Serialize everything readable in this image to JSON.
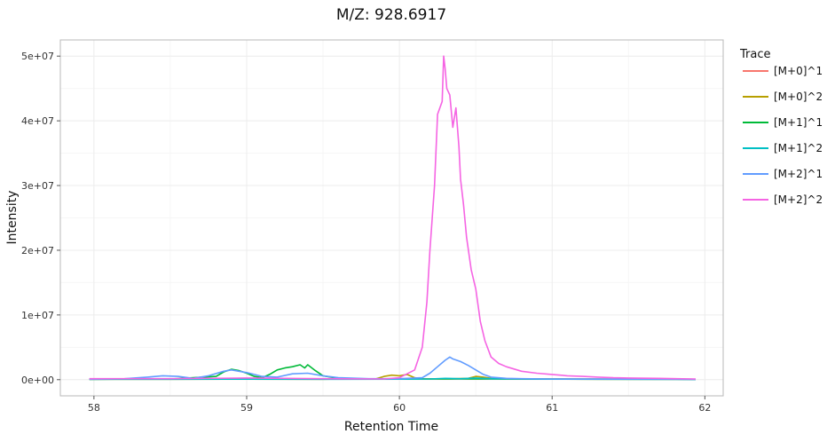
{
  "chart_data": {
    "type": "line",
    "title": "M/Z: 928.6917",
    "xlabel": "Retention Time",
    "ylabel": "Intensity",
    "xlim": [
      57.78,
      62.12
    ],
    "ylim": [
      -2500000,
      52500000
    ],
    "x_ticks": [
      58,
      59,
      60,
      61,
      62
    ],
    "x_tick_labels": [
      "58",
      "59",
      "60",
      "61",
      "62"
    ],
    "y_ticks": [
      0,
      10000000,
      20000000,
      30000000,
      40000000,
      50000000
    ],
    "y_tick_labels": [
      "0e+00",
      "1e+07",
      "2e+07",
      "3e+07",
      "4e+07",
      "5e+07"
    ],
    "grid": true,
    "legend": {
      "title": "Trace",
      "position": "right"
    },
    "series": [
      {
        "name": "[M+0]^1",
        "color": "#F8766D",
        "x": [
          57.97,
          58.3,
          58.6,
          58.9,
          59.2,
          59.5,
          59.8,
          60.0,
          60.3,
          60.6,
          60.9,
          61.2,
          61.5,
          61.8,
          61.94
        ],
        "y": [
          80000,
          120000,
          100000,
          200000,
          150000,
          120000,
          100000,
          150000,
          100000,
          120000,
          100000,
          90000,
          100000,
          80000,
          70000
        ]
      },
      {
        "name": "[M+0]^2",
        "color": "#B79F00",
        "x": [
          57.97,
          58.5,
          59.0,
          59.5,
          59.85,
          59.9,
          59.95,
          60.0,
          60.05,
          60.1,
          60.15,
          60.3,
          60.45,
          60.5,
          60.55,
          60.6,
          60.8,
          61.3,
          61.94
        ],
        "y": [
          50000,
          60000,
          80000,
          60000,
          150000,
          500000,
          700000,
          600000,
          800000,
          300000,
          100000,
          100000,
          200000,
          500000,
          400000,
          200000,
          100000,
          60000,
          50000
        ]
      },
      {
        "name": "[M+1]^1",
        "color": "#00BA38",
        "x": [
          57.97,
          58.5,
          58.8,
          58.85,
          58.9,
          58.95,
          59.0,
          59.05,
          59.1,
          59.15,
          59.2,
          59.25,
          59.3,
          59.35,
          59.38,
          59.4,
          59.45,
          59.5,
          59.6,
          60.0,
          60.5,
          61.0,
          61.94
        ],
        "y": [
          80000,
          100000,
          500000,
          1200000,
          1600000,
          1400000,
          1000000,
          500000,
          300000,
          800000,
          1500000,
          1800000,
          2000000,
          2300000,
          1800000,
          2300000,
          1400000,
          600000,
          200000,
          100000,
          100000,
          80000,
          50000
        ]
      },
      {
        "name": "[M+1]^2",
        "color": "#00BFC4",
        "x": [
          57.97,
          58.5,
          59.0,
          59.5,
          60.0,
          60.2,
          60.3,
          60.4,
          60.5,
          60.6,
          60.8,
          61.0,
          61.5,
          61.94
        ],
        "y": [
          50000,
          60000,
          80000,
          60000,
          80000,
          100000,
          200000,
          150000,
          250000,
          150000,
          100000,
          80000,
          60000,
          50000
        ]
      },
      {
        "name": "[M+2]^1",
        "color": "#619CFF",
        "x": [
          57.97,
          58.2,
          58.35,
          58.45,
          58.55,
          58.65,
          58.75,
          58.85,
          58.9,
          58.95,
          59.0,
          59.05,
          59.1,
          59.2,
          59.3,
          59.4,
          59.5,
          59.6,
          59.8,
          60.0,
          60.15,
          60.2,
          60.25,
          60.3,
          60.33,
          60.35,
          60.4,
          60.45,
          60.5,
          60.55,
          60.6,
          60.7,
          60.8,
          61.0,
          61.5,
          61.94
        ],
        "y": [
          80000,
          150000,
          400000,
          600000,
          500000,
          200000,
          600000,
          1300000,
          1500000,
          1300000,
          1100000,
          800000,
          500000,
          400000,
          900000,
          1000000,
          600000,
          300000,
          150000,
          150000,
          300000,
          1000000,
          2000000,
          3000000,
          3500000,
          3200000,
          2800000,
          2200000,
          1500000,
          800000,
          400000,
          200000,
          150000,
          100000,
          80000,
          50000
        ]
      },
      {
        "name": "[M+2]^2",
        "color": "#F564E3",
        "x": [
          57.97,
          58.5,
          59.0,
          59.5,
          59.9,
          60.0,
          60.1,
          60.15,
          60.18,
          60.2,
          60.23,
          60.25,
          60.28,
          60.29,
          60.3,
          60.31,
          60.33,
          60.35,
          60.37,
          60.39,
          60.4,
          60.42,
          60.44,
          60.47,
          60.5,
          60.53,
          60.56,
          60.6,
          60.65,
          60.7,
          60.8,
          60.9,
          61.0,
          61.1,
          61.2,
          61.3,
          61.4,
          61.5,
          61.7,
          61.94
        ],
        "y": [
          150000,
          150000,
          250000,
          150000,
          100000,
          300000,
          1500000,
          5000000,
          12000000,
          20000000,
          30000000,
          41000000,
          43000000,
          50000000,
          48000000,
          45000000,
          44000000,
          39000000,
          42000000,
          36000000,
          31000000,
          27000000,
          22000000,
          17000000,
          14000000,
          9000000,
          6000000,
          3500000,
          2500000,
          2000000,
          1300000,
          1000000,
          800000,
          600000,
          500000,
          400000,
          300000,
          250000,
          200000,
          100000
        ]
      }
    ]
  }
}
